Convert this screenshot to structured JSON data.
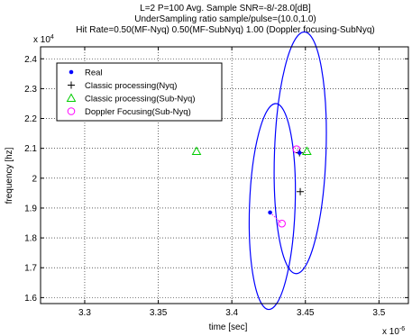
{
  "chart_data": {
    "type": "scatter",
    "title": [
      "L=2 P=100 Avg. Sample SNR=-8/-28.0[dB]",
      "UnderSampling ratio sample/pulse=(10.0,1.0)",
      "Hit Rate=0.50(MF-Nyq) 0.50(MF-SubNyq) 1.00 (Doppler focusing-SubNyq)"
    ],
    "xlabel": "time [sec]",
    "ylabel": "frequency [hz]",
    "x_exponent": "x 10",
    "x_exponent_power": "-6",
    "y_exponent": "x 10",
    "y_exponent_power": "4",
    "xlim": [
      3.27,
      3.52
    ],
    "ylim": [
      1.58,
      2.44
    ],
    "xticks": [
      3.3,
      3.35,
      3.4,
      3.45,
      3.5
    ],
    "yticks": [
      1.6,
      1.7,
      1.8,
      1.9,
      2.0,
      2.1,
      2.2,
      2.3,
      2.4
    ],
    "xtick_labels": [
      "3.3",
      "3.35",
      "3.4",
      "3.45",
      "3.5"
    ],
    "ytick_labels": [
      "1.6",
      "1.7",
      "1.8",
      "1.9",
      "2",
      "2.1",
      "2.2",
      "2.3",
      "2.4"
    ],
    "grid": true,
    "legend_position": "top-left",
    "series": [
      {
        "name": "Real",
        "marker": "dot",
        "color": "#0000ff",
        "points": [
          [
            3.426,
            1.885
          ],
          [
            3.446,
            2.085
          ]
        ]
      },
      {
        "name": "Classic processing(Nyq)",
        "marker": "plus",
        "color": "#000000",
        "points": [
          [
            3.4465,
            1.955
          ],
          [
            3.446,
            2.085
          ]
        ]
      },
      {
        "name": "Classic processing(Sub-Nyq)",
        "marker": "triangle",
        "color": "#00cc00",
        "points": [
          [
            3.376,
            2.09
          ],
          [
            3.451,
            2.09
          ]
        ]
      },
      {
        "name": "Doppler Focusing(Sub-Nyq)",
        "marker": "circle",
        "color": "#ff00ff",
        "points": [
          [
            3.434,
            1.848
          ],
          [
            3.444,
            2.097
          ]
        ]
      }
    ],
    "ellipses": [
      {
        "color": "#0000ff",
        "center": [
          3.4275,
          1.905
        ],
        "x_radius": 0.0155,
        "y_radius": 0.345,
        "tilt": 2
      },
      {
        "color": "#0000ff",
        "center": [
          3.4465,
          2.085
        ],
        "x_radius": 0.0175,
        "y_radius": 0.405,
        "tilt": 2
      }
    ],
    "connectors": [
      {
        "color": "#ff00ff",
        "from": [
          3.426,
          1.885
        ],
        "to": [
          3.434,
          1.848
        ]
      },
      {
        "color": "#ff00ff",
        "from": [
          3.446,
          2.085
        ],
        "to": [
          3.444,
          2.097
        ]
      }
    ]
  }
}
